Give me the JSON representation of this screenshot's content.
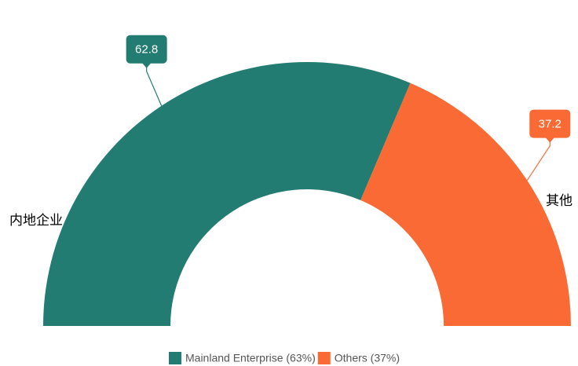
{
  "chart_data": {
    "type": "pie",
    "shape": "semi-donut",
    "categories": [
      "内地企业",
      "其他"
    ],
    "legend": [
      "Mainland Enterprise (63%)",
      "Others (37%)"
    ],
    "values": [
      62.8,
      37.2
    ],
    "colors": [
      "#237c72",
      "#fa6a34"
    ]
  }
}
